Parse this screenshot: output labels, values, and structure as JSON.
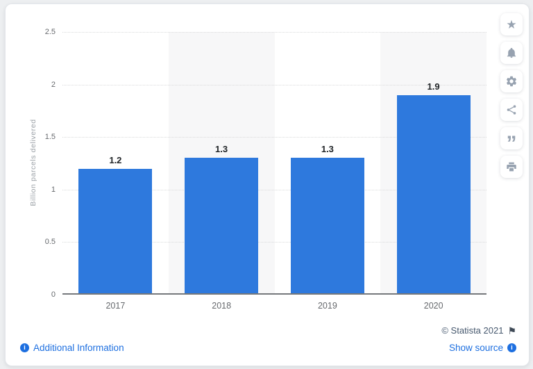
{
  "glyphs": {
    "star": "★",
    "quote": "”",
    "flag": "⚑",
    "info": "i"
  },
  "colors": {
    "bar": "#2e79dd",
    "band": "#f7f7f8",
    "link_blue": "#1d6fe0",
    "credit_text": "#46586e",
    "toolbar_icon": "#97a2b0",
    "axis_line": "#75787b",
    "tick_text": "#66696d",
    "value_label_text": "#1f2326",
    "gridline": "#d9dadb",
    "y_axis_title_text": "#9aa0a6",
    "card_background": "#ffffff",
    "page_background": "#edeff1"
  },
  "chart_data": {
    "type": "bar",
    "title": "",
    "categories": [
      "2017",
      "2018",
      "2019",
      "2020"
    ],
    "values": [
      1.2,
      1.3,
      1.3,
      1.9
    ],
    "value_labels": [
      "1.2",
      "1.3",
      "1.3",
      "1.9"
    ],
    "xlabel": "",
    "ylabel": "Billion parcels delivered",
    "ylim": [
      0,
      2.5
    ],
    "yticks": [
      0,
      0.5,
      1,
      1.5,
      2,
      2.5
    ],
    "ytick_labels": [
      "0",
      "0.5",
      "1",
      "1.5",
      "2",
      "2.5"
    ],
    "grid": "horizontal-dotted",
    "legend": "none",
    "bar_color": "#2e79dd",
    "alternating_band_color": "#f7f7f8",
    "band_columns": [
      "2018",
      "2020"
    ]
  },
  "toolbar": {
    "buttons": [
      "star-icon",
      "bell-icon",
      "gear-icon",
      "share-icon",
      "quote-icon",
      "print-icon"
    ]
  },
  "footer": {
    "copyright": "© Statista 2021",
    "additional_info_label": "Additional Information",
    "show_source_label": "Show source"
  }
}
